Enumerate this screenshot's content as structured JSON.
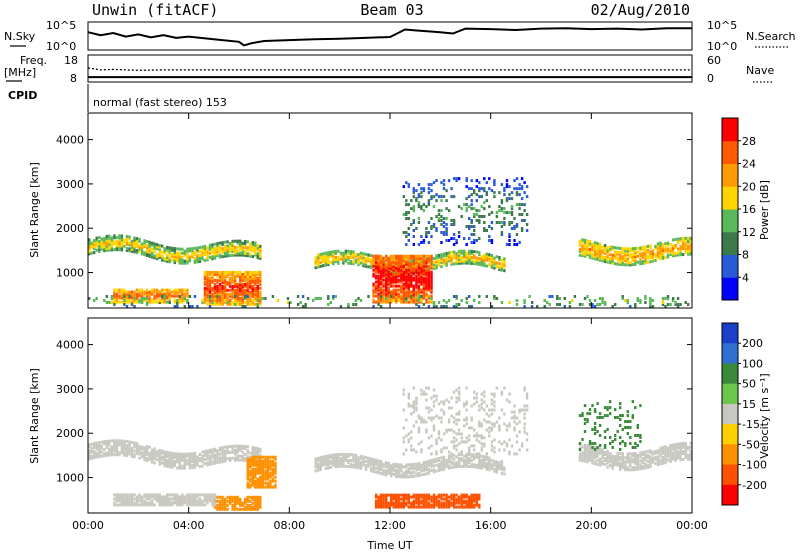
{
  "header": {
    "station": "Unwin (fitACF)",
    "beam": "Beam 03",
    "date": "02/Aug/2010"
  },
  "status": {
    "nsky_label": "N.Sky",
    "nsearch_label": "N.Search",
    "freq_label": "Freq.",
    "freq_unit": "[MHz]",
    "nave_label": "Nave",
    "cpid_label": "CPID",
    "cpid_text": "normal (fast stereo) 153",
    "noise_left_ticks": [
      "10^5",
      "10^0"
    ],
    "noise_right_ticks": [
      "10^5",
      "10^0"
    ],
    "freq_ticks": [
      "18",
      "8"
    ],
    "nave_ticks": [
      "60",
      "0"
    ],
    "noise_sky_trace": [
      [
        0,
        3.6
      ],
      [
        0.5,
        2.9
      ],
      [
        1,
        3.4
      ],
      [
        1.5,
        2.6
      ],
      [
        2,
        3.1
      ],
      [
        2.5,
        2.4
      ],
      [
        3,
        2.9
      ],
      [
        3.5,
        2.3
      ],
      [
        4,
        2.6
      ],
      [
        5,
        2.0
      ],
      [
        6,
        1.4
      ],
      [
        6.2,
        0.6
      ],
      [
        6.5,
        1.1
      ],
      [
        7,
        1.6
      ],
      [
        8,
        1.8
      ],
      [
        9,
        2.0
      ],
      [
        10,
        2.1
      ],
      [
        11,
        2.3
      ],
      [
        12,
        2.5
      ],
      [
        12.6,
        4.2
      ],
      [
        13,
        4.0
      ],
      [
        14,
        3.6
      ],
      [
        14.5,
        3.3
      ],
      [
        15,
        4.4
      ],
      [
        16,
        4.3
      ],
      [
        17,
        4.1
      ],
      [
        18,
        4.4
      ],
      [
        19,
        4.5
      ],
      [
        20,
        4.3
      ],
      [
        21,
        4.4
      ],
      [
        22,
        4.2
      ],
      [
        23,
        4.5
      ],
      [
        24,
        4.5
      ]
    ],
    "freq_mhz_trace": [
      [
        0,
        13.5
      ],
      [
        0.5,
        12.6
      ],
      [
        1,
        12.8
      ],
      [
        2,
        12.4
      ],
      [
        3,
        12.6
      ],
      [
        24,
        12.6
      ]
    ],
    "nave_trace": [
      [
        0,
        8
      ],
      [
        24,
        8
      ]
    ]
  },
  "chart_data": [
    {
      "type": "heatmap",
      "panel": "power",
      "ylabel": "Slant Range [km]",
      "xlabel": "",
      "x_ticks": [
        "00:00",
        "04:00",
        "08:00",
        "12:00",
        "16:00",
        "20:00",
        "00:00"
      ],
      "y_ticks": [
        "1000",
        "2000",
        "3000",
        "4000"
      ],
      "xlim_hours": [
        0,
        24
      ],
      "ylim_km": [
        200,
        4600
      ],
      "colorbar": {
        "label": "Power [dB]",
        "ticks": [
          "4",
          "8",
          "12",
          "16",
          "20",
          "24",
          "28"
        ],
        "colors": [
          "#0000ff",
          "#2a5bd7",
          "#3c7a4a",
          "#58b85a",
          "#ffd400",
          "#ff9a00",
          "#ff5a00",
          "#ff0000"
        ]
      },
      "features": [
        {
          "kind": "band",
          "t0": 0,
          "t1": 6.8,
          "r_center": 1380,
          "r_width": 320,
          "level": 16
        },
        {
          "kind": "band",
          "t0": 9,
          "t1": 16.5,
          "r_center": 1200,
          "r_width": 280,
          "level": 17
        },
        {
          "kind": "band",
          "t0": 19.5,
          "t1": 24,
          "r_center": 1450,
          "r_width": 380,
          "level": 18
        },
        {
          "kind": "blob",
          "t0": 11.3,
          "t1": 13.6,
          "r0": 300,
          "r1": 1350,
          "level": 27
        },
        {
          "kind": "blob",
          "t0": 4.6,
          "t1": 6.8,
          "r0": 250,
          "r1": 1000,
          "level": 24
        },
        {
          "kind": "blob",
          "t0": 1,
          "t1": 4,
          "r0": 300,
          "r1": 600,
          "level": 22
        },
        {
          "kind": "scatter",
          "t0": 12.5,
          "t1": 17.5,
          "r0": 1600,
          "r1": 3100,
          "level": 8
        },
        {
          "kind": "scatter",
          "t0": 0,
          "t1": 24,
          "r0": 200,
          "r1": 450,
          "level": 12
        }
      ]
    },
    {
      "type": "heatmap",
      "panel": "velocity",
      "ylabel": "Slant Range [km]",
      "xlabel": "Time UT",
      "x_ticks": [
        "00:00",
        "04:00",
        "08:00",
        "12:00",
        "16:00",
        "20:00",
        "00:00"
      ],
      "y_ticks": [
        "1000",
        "2000",
        "3000",
        "4000"
      ],
      "xlim_hours": [
        0,
        24
      ],
      "ylim_km": [
        200,
        4600
      ],
      "colorbar": {
        "label": "Velocity [m s⁻¹]",
        "ticks": [
          "200",
          "100",
          "50",
          "15",
          "-15",
          "-50",
          "-100",
          "-200"
        ],
        "colors": [
          "#1a3fc8",
          "#2f6fcf",
          "#3a8a3a",
          "#6cc64a",
          "#c8c8c0",
          "#ffd000",
          "#ff9000",
          "#ff5000",
          "#ff0000"
        ]
      },
      "features": [
        {
          "kind": "band",
          "t0": 0,
          "t1": 6.8,
          "r_center": 1380,
          "r_width": 320,
          "level": 0
        },
        {
          "kind": "band",
          "t0": 9,
          "t1": 16.5,
          "r_center": 1250,
          "r_width": 300,
          "level": 0
        },
        {
          "kind": "band",
          "t0": 19.5,
          "t1": 24,
          "r_center": 1450,
          "r_width": 380,
          "level": 0
        },
        {
          "kind": "blob",
          "t0": 6.3,
          "t1": 7.4,
          "r0": 750,
          "r1": 1450,
          "level": -80
        },
        {
          "kind": "blob",
          "t0": 11.4,
          "t1": 15.5,
          "r0": 300,
          "r1": 600,
          "level": -150
        },
        {
          "kind": "blob",
          "t0": 5,
          "t1": 6.8,
          "r0": 250,
          "r1": 550,
          "level": -60
        },
        {
          "kind": "blob",
          "t0": 1,
          "t1": 5,
          "r0": 350,
          "r1": 600,
          "level": 0
        },
        {
          "kind": "scatter",
          "t0": 12.5,
          "t1": 17.5,
          "r0": 1500,
          "r1": 3000,
          "level": 0
        },
        {
          "kind": "scatter",
          "t0": 19.5,
          "t1": 22,
          "r0": 1600,
          "r1": 2700,
          "level": 30
        }
      ]
    }
  ]
}
